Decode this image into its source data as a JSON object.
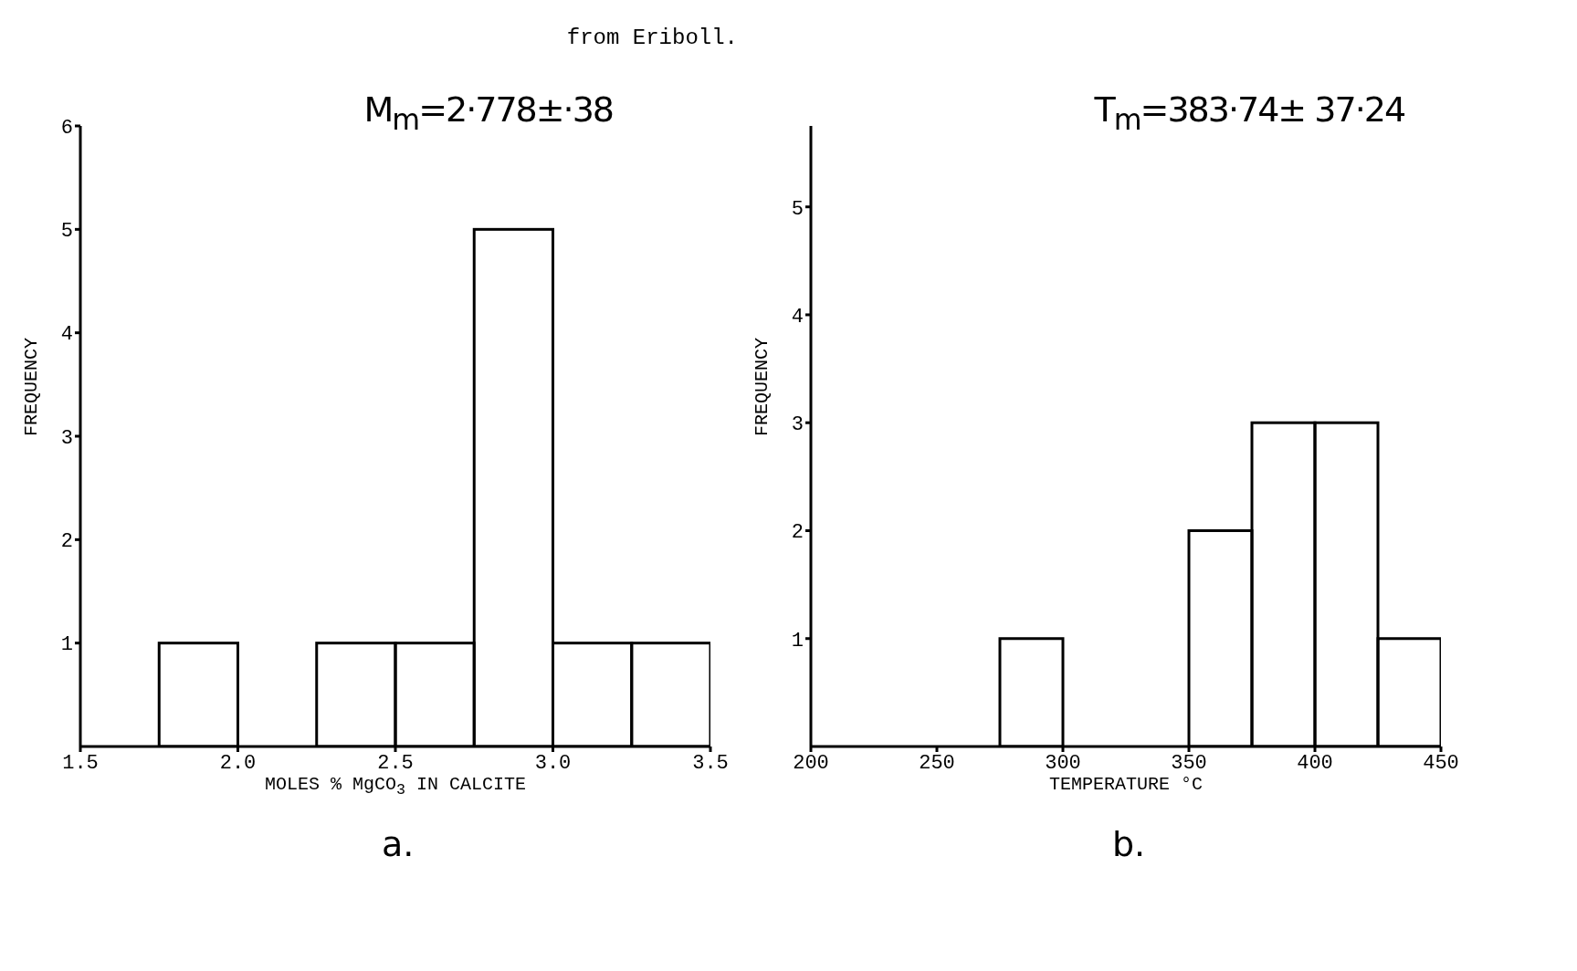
{
  "chart_data": [
    {
      "type": "histogram",
      "title": "from Eriboll.",
      "xlabel": "MOLES % MgCO$_{3}$ IN CALCITE",
      "ylabel": "FREQUENCY",
      "annotations": [
        "M$_{m}$=2·778±·38",
        "a."
      ],
      "bins": [
        1.75,
        2.0,
        2.25,
        2.5,
        2.75,
        3.0,
        3.25,
        3.5
      ],
      "values": [
        1,
        0,
        1,
        1,
        5,
        1,
        1
      ],
      "color": "#000000",
      "xlim": [
        1.5,
        3.5
      ],
      "xticks": [
        {
          "value": 1.5,
          "label": "1.5"
        },
        {
          "value": 2,
          "label": "2.0"
        },
        {
          "value": 2.5,
          "label": "2.5"
        },
        {
          "value": 3,
          "label": "3.0"
        },
        {
          "value": 3.5,
          "label": "3.5"
        }
      ],
      "ylim": [
        0,
        6
      ],
      "yticks": [
        1,
        2,
        3,
        4,
        5,
        6
      ]
    },
    {
      "type": "histogram",
      "xlabel": "TEMPERATURE °C",
      "ylabel": "FREQUENCY",
      "annotations": [
        "T$_{m}$=383·74± 37·24",
        "b."
      ],
      "bins": [
        275,
        300,
        325,
        350,
        375,
        400,
        425,
        450
      ],
      "values": [
        1,
        0,
        0,
        2,
        3,
        3,
        1
      ],
      "color": "#000000",
      "xlim": [
        200,
        450
      ],
      "xticks": [
        200,
        250,
        300,
        350,
        400,
        450
      ],
      "ylim": [
        0,
        5.75
      ],
      "yticks": [
        1,
        2,
        3,
        4,
        5
      ]
    }
  ]
}
